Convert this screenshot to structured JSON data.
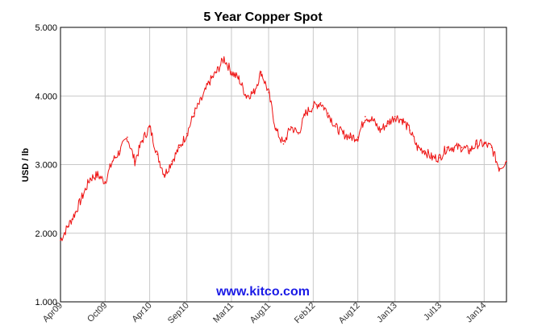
{
  "chart_data": {
    "type": "line",
    "title": "5 Year Copper Spot",
    "ylabel": "USD / lb",
    "xlabel": "",
    "watermark": "www.kitco.com",
    "ylim": [
      1.0,
      5.0
    ],
    "yticks": [
      "1.000",
      "2.000",
      "3.000",
      "4.000",
      "5.000"
    ],
    "xticks": [
      "Apr09",
      "Oct09",
      "Apr10",
      "Sep10",
      "Mar11",
      "Aug11",
      "Feb12",
      "Aug12",
      "Jan13",
      "Jul13",
      "Jan14"
    ],
    "grid": true,
    "line_color": "#ee1111",
    "series": [
      {
        "x": [
          "Apr09",
          "May09",
          "Jun09",
          "Jul09",
          "Aug09",
          "Sep09",
          "Oct09",
          "Nov09",
          "Dec09",
          "Jan10",
          "Feb10",
          "Mar10",
          "Apr10",
          "May10",
          "Jun10",
          "Jul10",
          "Aug10",
          "Sep10",
          "Oct10",
          "Nov10",
          "Dec10",
          "Jan11",
          "Feb11",
          "Mar11",
          "Apr11",
          "May11",
          "Jun11",
          "Jul11",
          "Aug11",
          "Sep11",
          "Oct11",
          "Nov11",
          "Dec11",
          "Jan12",
          "Feb12",
          "Mar12",
          "Apr12",
          "May12",
          "Jun12",
          "Jul12",
          "Aug12",
          "Sep12",
          "Oct12",
          "Nov12",
          "Dec12",
          "Jan13",
          "Feb13",
          "Mar13",
          "Apr13",
          "May13",
          "Jun13",
          "Jul13",
          "Aug13",
          "Sep13",
          "Oct13",
          "Nov13",
          "Dec13",
          "Jan14",
          "Feb14",
          "Mar14",
          "Apr14"
        ],
        "values": [
          1.9,
          2.1,
          2.3,
          2.55,
          2.8,
          2.85,
          2.75,
          3.05,
          3.2,
          3.4,
          3.05,
          3.35,
          3.55,
          3.15,
          2.85,
          3.05,
          3.25,
          3.45,
          3.75,
          3.95,
          4.2,
          4.35,
          4.55,
          4.35,
          4.25,
          4.0,
          4.05,
          4.35,
          4.05,
          3.5,
          3.3,
          3.55,
          3.45,
          3.75,
          3.85,
          3.9,
          3.75,
          3.55,
          3.45,
          3.4,
          3.4,
          3.7,
          3.65,
          3.5,
          3.6,
          3.7,
          3.65,
          3.5,
          3.25,
          3.2,
          3.1,
          3.1,
          3.25,
          3.25,
          3.25,
          3.2,
          3.3,
          3.3,
          3.25,
          2.95,
          3.05
        ]
      }
    ]
  }
}
